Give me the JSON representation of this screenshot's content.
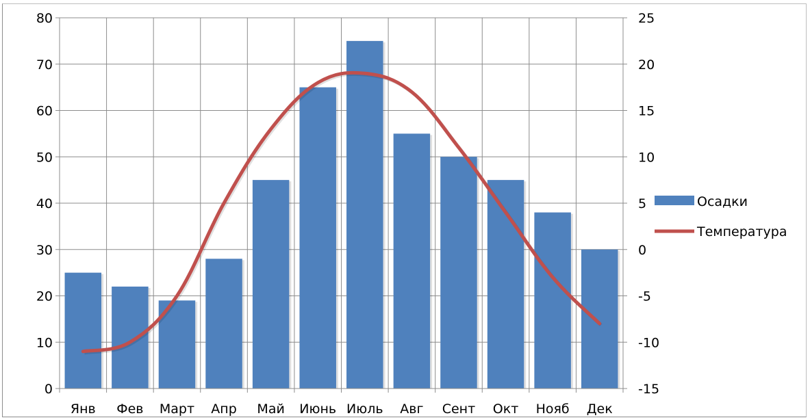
{
  "chart_data": {
    "type": "bar",
    "categories": [
      "Янв",
      "Фев",
      "Март",
      "Апр",
      "Май",
      "Июнь",
      "Июль",
      "Авг",
      "Сент",
      "Окт",
      "Нояб",
      "Дек"
    ],
    "series": [
      {
        "name": "Осадки",
        "type": "bar",
        "axis": "left",
        "color": "#4f81bd",
        "values": [
          25,
          22,
          19,
          28,
          45,
          65,
          75,
          55,
          50,
          45,
          38,
          30
        ]
      },
      {
        "name": "Температура",
        "type": "line",
        "axis": "right",
        "color": "#c0504d",
        "values": [
          -11,
          -10,
          -5,
          5,
          13,
          18,
          19,
          17,
          11,
          4,
          -3,
          -8
        ]
      }
    ],
    "y_left": {
      "min": 0,
      "max": 80,
      "step": 10
    },
    "y_right": {
      "min": -15,
      "max": 25,
      "step": 5
    },
    "grid": true,
    "legend": "right"
  }
}
